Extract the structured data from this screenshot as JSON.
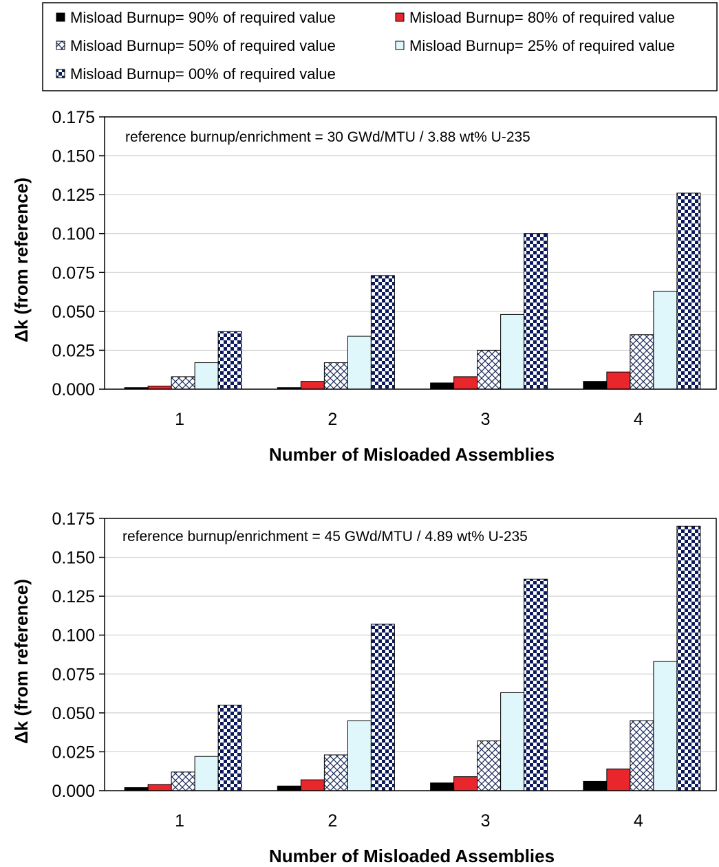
{
  "legend": {
    "items": [
      {
        "label": "Misload Burnup= 90% of required value",
        "series_index": 0
      },
      {
        "label": "Misload Burnup= 80% of required value",
        "series_index": 1
      },
      {
        "label": "Misload Burnup= 50% of required value",
        "series_index": 2
      },
      {
        "label": "Misload Burnup= 25% of required value",
        "series_index": 3
      },
      {
        "label": "Misload Burnup= 00% of required value",
        "series_index": 4
      }
    ]
  },
  "colors": {
    "s90": "#000000",
    "s80": "#e8262c",
    "s50_pattern": "#1a2a5a",
    "s25": "#dff6fb",
    "s00_pattern": "#0b1a5c",
    "grid": "#c8c8c8"
  },
  "chart_data": [
    {
      "type": "bar",
      "annotation": "reference burnup/enrichment = 30 GWd/MTU / 3.88 wt% U-235",
      "xlabel": "Number of Misloaded Assemblies",
      "ylabel": "Δk (from reference)",
      "categories": [
        "1",
        "2",
        "3",
        "4"
      ],
      "ylim": [
        0,
        0.175
      ],
      "yticks": [
        "0.000",
        "0.025",
        "0.050",
        "0.075",
        "0.100",
        "0.125",
        "0.150",
        "0.175"
      ],
      "grid": true,
      "series": [
        {
          "name": "Misload Burnup= 90% of required value",
          "values": [
            0.001,
            0.001,
            0.004,
            0.005
          ]
        },
        {
          "name": "Misload Burnup= 80% of required value",
          "values": [
            0.002,
            0.005,
            0.008,
            0.011
          ]
        },
        {
          "name": "Misload Burnup= 50% of required value",
          "values": [
            0.008,
            0.017,
            0.025,
            0.035
          ]
        },
        {
          "name": "Misload Burnup= 25% of required value",
          "values": [
            0.017,
            0.034,
            0.048,
            0.063
          ]
        },
        {
          "name": "Misload Burnup= 00% of required value",
          "values": [
            0.037,
            0.073,
            0.1,
            0.126
          ]
        }
      ]
    },
    {
      "type": "bar",
      "annotation": "reference burnup/enrichment = 45 GWd/MTU / 4.89 wt% U-235",
      "xlabel": "Number of Misloaded Assemblies",
      "ylabel": "Δk (from reference)",
      "categories": [
        "1",
        "2",
        "3",
        "4"
      ],
      "ylim": [
        0,
        0.175
      ],
      "yticks": [
        "0.000",
        "0.025",
        "0.050",
        "0.075",
        "0.100",
        "0.125",
        "0.150",
        "0.175"
      ],
      "grid": true,
      "series": [
        {
          "name": "Misload Burnup= 90% of required value",
          "values": [
            0.002,
            0.003,
            0.005,
            0.006
          ]
        },
        {
          "name": "Misload Burnup= 80% of required value",
          "values": [
            0.004,
            0.007,
            0.009,
            0.014
          ]
        },
        {
          "name": "Misload Burnup= 50% of required value",
          "values": [
            0.012,
            0.023,
            0.032,
            0.045
          ]
        },
        {
          "name": "Misload Burnup= 25% of required value",
          "values": [
            0.022,
            0.045,
            0.063,
            0.083
          ]
        },
        {
          "name": "Misload Burnup= 00% of required value",
          "values": [
            0.055,
            0.107,
            0.136,
            0.17
          ]
        }
      ]
    }
  ]
}
